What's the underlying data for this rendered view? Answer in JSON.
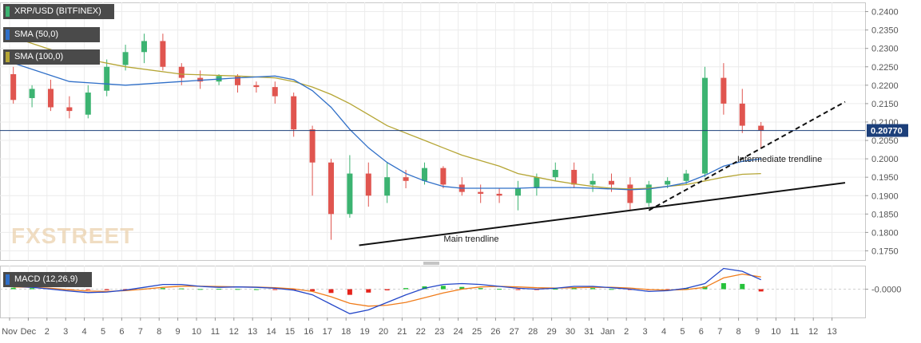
{
  "chart_data": {
    "type": "candlestick",
    "instrument_label": "XRP/USD (BITFINEX)",
    "overlays": [
      {
        "name": "SMA (50,0)",
        "color": "#2f6fc8"
      },
      {
        "name": "SMA (100,0)",
        "color": "#b5a534"
      }
    ],
    "current_price_label": "0.20770",
    "current_price": 0.2077,
    "price_axis": {
      "ylim": [
        0.1725,
        0.2425
      ],
      "ticks": [
        "0.1750",
        "0.1800",
        "0.1850",
        "0.1900",
        "0.1950",
        "0.2000",
        "0.2050",
        "0.2100",
        "0.2150",
        "0.2200",
        "0.2250",
        "0.2300",
        "0.2350",
        "0.2400"
      ]
    },
    "x_ticks": [
      "Nov",
      "Dec",
      "2",
      "3",
      "4",
      "5",
      "6",
      "7",
      "8",
      "9",
      "10",
      "11",
      "12",
      "13",
      "14",
      "15",
      "16",
      "17",
      "18",
      "19",
      "20",
      "21",
      "22",
      "23",
      "24",
      "25",
      "26",
      "27",
      "28",
      "29",
      "30",
      "31",
      "Jan",
      "2",
      "3",
      "4",
      "5",
      "6",
      "7",
      "8",
      "9",
      "10",
      "11",
      "12",
      "13"
    ],
    "candles": [
      {
        "o": 0.223,
        "h": 0.225,
        "l": 0.215,
        "c": 0.216
      },
      {
        "o": 0.2165,
        "h": 0.22,
        "l": 0.214,
        "c": 0.219
      },
      {
        "o": 0.219,
        "h": 0.2215,
        "l": 0.213,
        "c": 0.214
      },
      {
        "o": 0.214,
        "h": 0.217,
        "l": 0.211,
        "c": 0.213
      },
      {
        "o": 0.212,
        "h": 0.22,
        "l": 0.211,
        "c": 0.218
      },
      {
        "o": 0.2185,
        "h": 0.227,
        "l": 0.217,
        "c": 0.225
      },
      {
        "o": 0.2255,
        "h": 0.231,
        "l": 0.224,
        "c": 0.229
      },
      {
        "o": 0.229,
        "h": 0.234,
        "l": 0.226,
        "c": 0.232
      },
      {
        "o": 0.232,
        "h": 0.234,
        "l": 0.224,
        "c": 0.225
      },
      {
        "o": 0.225,
        "h": 0.226,
        "l": 0.22,
        "c": 0.222
      },
      {
        "o": 0.222,
        "h": 0.224,
        "l": 0.219,
        "c": 0.221
      },
      {
        "o": 0.221,
        "h": 0.223,
        "l": 0.22,
        "c": 0.2225
      },
      {
        "o": 0.2225,
        "h": 0.223,
        "l": 0.218,
        "c": 0.22
      },
      {
        "o": 0.22,
        "h": 0.221,
        "l": 0.218,
        "c": 0.2195
      },
      {
        "o": 0.2195,
        "h": 0.221,
        "l": 0.215,
        "c": 0.217
      },
      {
        "o": 0.217,
        "h": 0.218,
        "l": 0.206,
        "c": 0.208
      },
      {
        "o": 0.208,
        "h": 0.209,
        "l": 0.19,
        "c": 0.199
      },
      {
        "o": 0.199,
        "h": 0.2,
        "l": 0.178,
        "c": 0.185
      },
      {
        "o": 0.185,
        "h": 0.201,
        "l": 0.184,
        "c": 0.196
      },
      {
        "o": 0.196,
        "h": 0.199,
        "l": 0.187,
        "c": 0.19
      },
      {
        "o": 0.19,
        "h": 0.199,
        "l": 0.188,
        "c": 0.195
      },
      {
        "o": 0.195,
        "h": 0.197,
        "l": 0.192,
        "c": 0.194
      },
      {
        "o": 0.194,
        "h": 0.199,
        "l": 0.193,
        "c": 0.1975
      },
      {
        "o": 0.1975,
        "h": 0.198,
        "l": 0.192,
        "c": 0.193
      },
      {
        "o": 0.193,
        "h": 0.195,
        "l": 0.19,
        "c": 0.191
      },
      {
        "o": 0.191,
        "h": 0.193,
        "l": 0.188,
        "c": 0.1905
      },
      {
        "o": 0.1905,
        "h": 0.192,
        "l": 0.188,
        "c": 0.19
      },
      {
        "o": 0.19,
        "h": 0.194,
        "l": 0.186,
        "c": 0.192
      },
      {
        "o": 0.192,
        "h": 0.196,
        "l": 0.19,
        "c": 0.195
      },
      {
        "o": 0.195,
        "h": 0.199,
        "l": 0.194,
        "c": 0.197
      },
      {
        "o": 0.197,
        "h": 0.199,
        "l": 0.192,
        "c": 0.193
      },
      {
        "o": 0.193,
        "h": 0.196,
        "l": 0.191,
        "c": 0.194
      },
      {
        "o": 0.194,
        "h": 0.196,
        "l": 0.191,
        "c": 0.193
      },
      {
        "o": 0.193,
        "h": 0.195,
        "l": 0.186,
        "c": 0.188
      },
      {
        "o": 0.188,
        "h": 0.194,
        "l": 0.187,
        "c": 0.193
      },
      {
        "o": 0.193,
        "h": 0.195,
        "l": 0.192,
        "c": 0.194
      },
      {
        "o": 0.194,
        "h": 0.197,
        "l": 0.193,
        "c": 0.196
      },
      {
        "o": 0.196,
        "h": 0.225,
        "l": 0.195,
        "c": 0.222
      },
      {
        "o": 0.222,
        "h": 0.226,
        "l": 0.212,
        "c": 0.215
      },
      {
        "o": 0.215,
        "h": 0.219,
        "l": 0.207,
        "c": 0.209
      },
      {
        "o": 0.209,
        "h": 0.21,
        "l": 0.203,
        "c": 0.2077
      }
    ],
    "sma50": [
      [
        0,
        0.226
      ],
      [
        3,
        0.221
      ],
      [
        6,
        0.22
      ],
      [
        9,
        0.221
      ],
      [
        12,
        0.222
      ],
      [
        14,
        0.2225
      ],
      [
        15,
        0.2215
      ],
      [
        16,
        0.2185
      ],
      [
        17,
        0.214
      ],
      [
        18,
        0.208
      ],
      [
        19,
        0.203
      ],
      [
        20,
        0.199
      ],
      [
        21,
        0.196
      ],
      [
        22,
        0.194
      ],
      [
        23,
        0.1925
      ],
      [
        24,
        0.192
      ],
      [
        25,
        0.192
      ],
      [
        26,
        0.192
      ],
      [
        27,
        0.192
      ],
      [
        28,
        0.1922
      ],
      [
        29,
        0.1922
      ],
      [
        30,
        0.1922
      ],
      [
        31,
        0.192
      ],
      [
        32,
        0.1918
      ],
      [
        33,
        0.1916
      ],
      [
        34,
        0.1918
      ],
      [
        35,
        0.1925
      ],
      [
        36,
        0.1935
      ],
      [
        37,
        0.1955
      ],
      [
        38,
        0.198
      ],
      [
        39,
        0.1993
      ],
      [
        40,
        0.2
      ]
    ],
    "sma100": [
      [
        0,
        0.233
      ],
      [
        3,
        0.228
      ],
      [
        6,
        0.225
      ],
      [
        9,
        0.223
      ],
      [
        12,
        0.2225
      ],
      [
        14,
        0.222
      ],
      [
        15,
        0.221
      ],
      [
        16,
        0.2195
      ],
      [
        17,
        0.2175
      ],
      [
        18,
        0.215
      ],
      [
        19,
        0.212
      ],
      [
        20,
        0.209
      ],
      [
        21,
        0.207
      ],
      [
        22,
        0.205
      ],
      [
        23,
        0.203
      ],
      [
        24,
        0.201
      ],
      [
        25,
        0.1995
      ],
      [
        26,
        0.198
      ],
      [
        27,
        0.196
      ],
      [
        28,
        0.195
      ],
      [
        29,
        0.194
      ],
      [
        30,
        0.1932
      ],
      [
        31,
        0.1925
      ],
      [
        32,
        0.192
      ],
      [
        33,
        0.1918
      ],
      [
        34,
        0.192
      ],
      [
        35,
        0.1925
      ],
      [
        36,
        0.193
      ],
      [
        37,
        0.194
      ],
      [
        38,
        0.195
      ],
      [
        39,
        0.1958
      ],
      [
        40,
        0.196
      ]
    ],
    "trendlines": [
      {
        "label": "Main trendline",
        "style": "solid",
        "from": [
          18.5,
          0.1765
        ],
        "to": [
          44.5,
          0.1935
        ]
      },
      {
        "label": "Intermediate trendline",
        "style": "dashed",
        "from": [
          34,
          0.186
        ],
        "to": [
          44.5,
          0.2155
        ]
      }
    ],
    "macd": {
      "name": "MACD (12,26,9)",
      "axis_label": "-0.0000",
      "histogram": [
        0.0008,
        0.0006,
        0.0003,
        -0.0002,
        -0.0004,
        -0.0005,
        -0.0002,
        0.0003,
        0.0006,
        0.0004,
        0.0001,
        0.0002,
        0.0001,
        0.0,
        -0.0002,
        -0.0004,
        -0.001,
        -0.002,
        -0.003,
        -0.0018,
        -0.0006,
        0.0006,
        0.0015,
        0.0018,
        0.0012,
        0.0006,
        0.0002,
        -0.0002,
        -0.0003,
        0.0002,
        0.0008,
        0.0006,
        0.0001,
        -0.0002,
        -0.0005,
        -0.0001,
        0.0006,
        0.0015,
        0.0032,
        0.0028,
        -0.0012
      ],
      "macd_line": [
        0.0015,
        0.001,
        0.0,
        -0.001,
        -0.0018,
        -0.0015,
        -0.0005,
        0.001,
        0.0025,
        0.0025,
        0.0015,
        0.001,
        0.0012,
        0.001,
        0.0005,
        -0.0005,
        -0.003,
        -0.008,
        -0.013,
        -0.011,
        -0.007,
        -0.003,
        0.0005,
        0.0025,
        0.003,
        0.0025,
        0.0015,
        0.0005,
        0.0,
        0.0005,
        0.0015,
        0.0015,
        0.0008,
        0.0,
        -0.0012,
        -0.0008,
        0.0005,
        0.003,
        0.011,
        0.0095,
        0.005
      ],
      "signal_line": [
        0.0012,
        0.001,
        0.0005,
        -0.0003,
        -0.001,
        -0.0012,
        -0.0008,
        0.0,
        0.001,
        0.0016,
        0.0016,
        0.0014,
        0.0012,
        0.0011,
        0.0008,
        0.0002,
        -0.0012,
        -0.004,
        -0.0075,
        -0.009,
        -0.0085,
        -0.007,
        -0.0045,
        -0.002,
        0.0,
        0.0012,
        0.0015,
        0.0012,
        0.0008,
        0.0006,
        0.0008,
        0.001,
        0.001,
        0.0006,
        -0.0002,
        -0.0005,
        -0.0002,
        0.001,
        0.006,
        0.008,
        0.0065
      ],
      "ylim": [
        -0.015,
        0.0125
      ]
    },
    "colors": {
      "up": "#3cb371",
      "down": "#e0554f",
      "current_line": "#1c3f7a",
      "axis_text": "#555555"
    }
  },
  "watermark": "FXSTREET"
}
